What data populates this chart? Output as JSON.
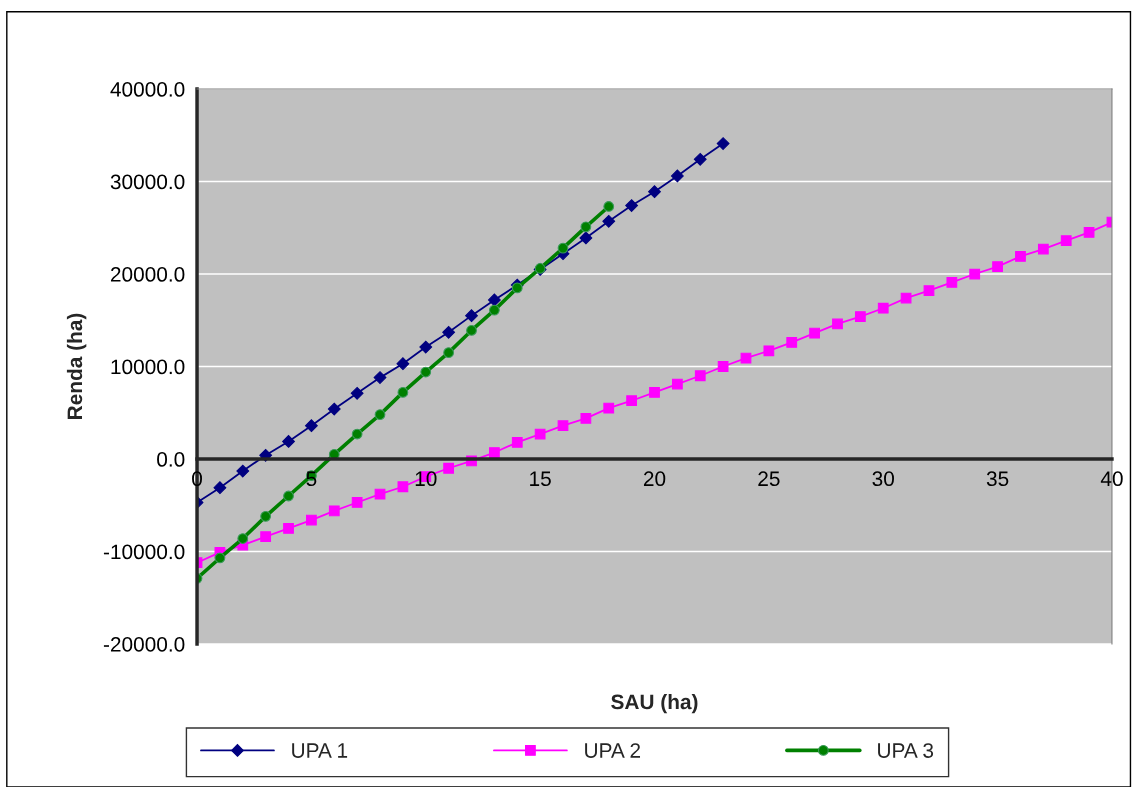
{
  "chart_data": {
    "type": "line",
    "xlabel": "SAU (ha)",
    "ylabel": "Renda (ha)",
    "xlim": [
      0,
      40
    ],
    "xticks": [
      0,
      5,
      10,
      15,
      20,
      25,
      30,
      35,
      40
    ],
    "ylim": [
      -20000,
      40000
    ],
    "yticks": [
      {
        "value": -20000,
        "label": "-20000.0"
      },
      {
        "value": -10000,
        "label": "-10000.0"
      },
      {
        "value": 0,
        "label": "0.0"
      },
      {
        "value": 10000,
        "label": "10000.0"
      },
      {
        "value": 20000,
        "label": "20000.0"
      },
      {
        "value": 30000,
        "label": "30000.0"
      },
      {
        "value": 40000,
        "label": "40000.0"
      }
    ],
    "grid": "y",
    "legend": "bottom",
    "series": [
      {
        "name": "UPA 1",
        "color": "#000080",
        "marker": "diamond",
        "x": [
          0,
          1,
          2,
          3,
          4,
          5,
          6,
          7,
          8,
          9,
          10,
          11,
          12,
          13,
          14,
          15,
          16,
          17,
          18,
          19,
          20,
          21,
          22,
          23
        ],
        "values": [
          -4700,
          -3100,
          -1300,
          400,
          1900,
          3600,
          5400,
          7100,
          8800,
          10300,
          12100,
          13700,
          15500,
          17200,
          18800,
          20500,
          22200,
          23900,
          25700,
          27400,
          28900,
          30600,
          32400,
          34100
        ]
      },
      {
        "name": "UPA 2",
        "color": "#ff00ff",
        "marker": "square",
        "x": [
          0,
          1,
          2,
          3,
          4,
          5,
          6,
          7,
          8,
          9,
          10,
          11,
          12,
          13,
          14,
          15,
          16,
          17,
          18,
          19,
          20,
          21,
          22,
          23,
          24,
          25,
          26,
          27,
          28,
          29,
          30,
          31,
          32,
          33,
          34,
          35,
          36,
          37,
          38,
          39,
          40
        ],
        "values": [
          -11200,
          -10100,
          -9300,
          -8400,
          -7500,
          -6600,
          -5600,
          -4700,
          -3800,
          -3000,
          -1900,
          -1000,
          -200,
          700,
          1800,
          2700,
          3600,
          4400,
          5500,
          6300,
          7200,
          8100,
          9000,
          10000,
          10900,
          11700,
          12600,
          13600,
          14600,
          15400,
          16300,
          17400,
          18200,
          19100,
          20000,
          20800,
          21900,
          22700,
          23600,
          24500,
          25600
        ]
      },
      {
        "name": "UPA 3",
        "color": "#008000",
        "marker": "circle",
        "x": [
          0,
          1,
          2,
          3,
          4,
          5,
          6,
          7,
          8,
          9,
          10,
          11,
          12,
          13,
          14,
          15,
          16,
          17,
          18
        ],
        "values": [
          -12900,
          -10700,
          -8600,
          -6200,
          -4000,
          -1800,
          500,
          2700,
          4800,
          7200,
          9400,
          11500,
          13900,
          16100,
          18500,
          20600,
          22800,
          25100,
          27300
        ]
      }
    ]
  }
}
